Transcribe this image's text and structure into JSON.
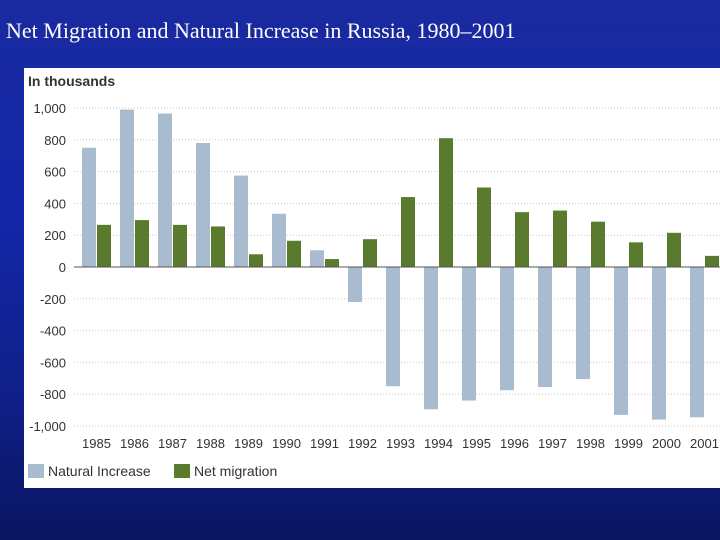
{
  "slide": {
    "title": "Net Migration and Natural Increase in Russia, 1980–2001"
  },
  "colors": {
    "natural_increase": "#a9bccf",
    "net_migration": "#5a7a2e",
    "background": "#1326a8",
    "gridline": "#c8c8c8"
  },
  "chart_data": {
    "type": "bar",
    "title": "",
    "ylabel": "In thousands",
    "xlabel": "",
    "categories": [
      "1985",
      "1986",
      "1987",
      "1988",
      "1989",
      "1990",
      "1991",
      "1992",
      "1993",
      "1994",
      "1995",
      "1996",
      "1997",
      "1998",
      "1999",
      "2000",
      "2001"
    ],
    "series": [
      {
        "name": "Natural Increase",
        "values": [
          750,
          990,
          965,
          780,
          575,
          335,
          105,
          -220,
          -750,
          -895,
          -840,
          -775,
          -755,
          -705,
          -930,
          -960,
          -945
        ]
      },
      {
        "name": "Net migration",
        "values": [
          265,
          295,
          265,
          255,
          80,
          165,
          50,
          175,
          440,
          810,
          500,
          345,
          355,
          285,
          155,
          215,
          70
        ]
      }
    ],
    "ylim": [
      -1000,
      1000
    ],
    "yticks": [
      "1,000",
      "800",
      "600",
      "400",
      "200",
      "0",
      "-200",
      "-400",
      "-600",
      "-800",
      "-1,000"
    ],
    "grid": "horizontal dotted",
    "legend_position": "bottom-left"
  }
}
